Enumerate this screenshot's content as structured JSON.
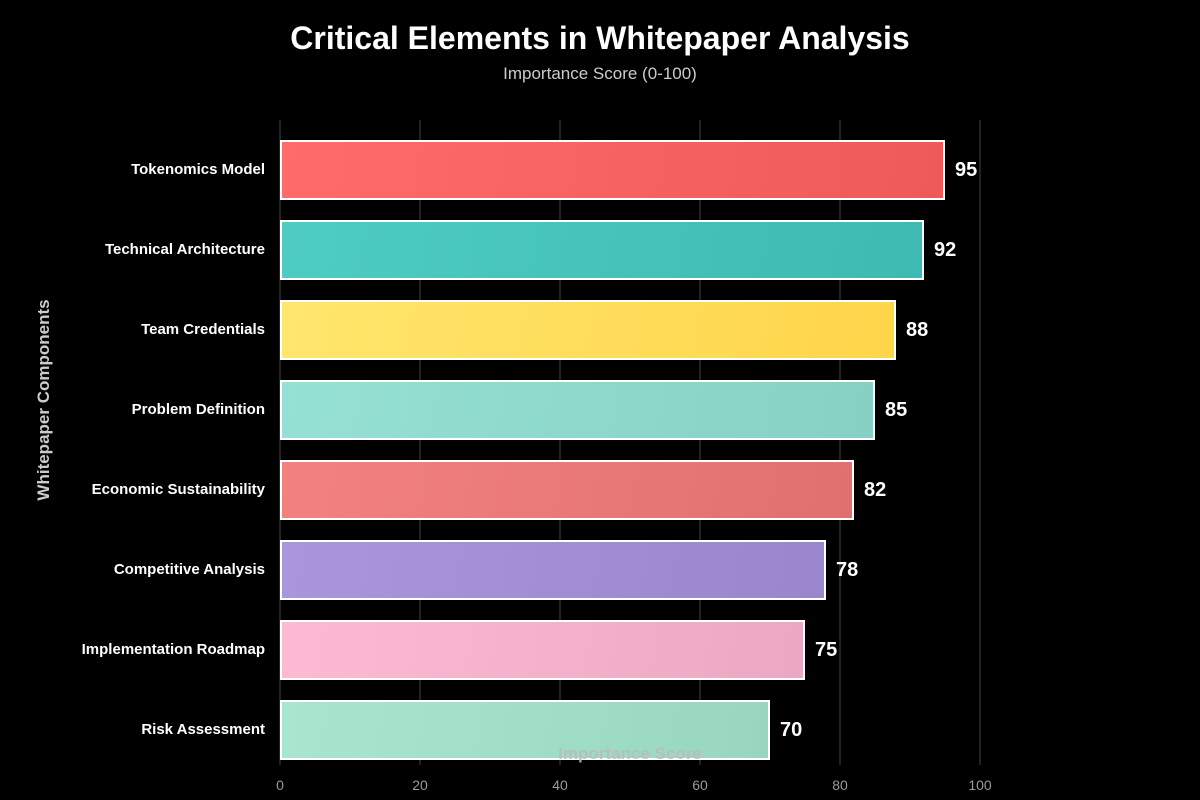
{
  "chart_data": {
    "type": "bar",
    "orientation": "horizontal",
    "title": "Critical Elements in Whitepaper Analysis",
    "subtitle": "Importance Score (0-100)",
    "xlabel": "Importance Score",
    "ylabel": "Whitepaper Components",
    "xlim": [
      0,
      100
    ],
    "xticks": [
      "0",
      "20",
      "40",
      "60",
      "80",
      "100"
    ],
    "grid": true,
    "legend": "none",
    "categories": [
      "Tokenomics Model",
      "Technical Architecture",
      "Team Credentials",
      "Problem Definition",
      "Economic Sustainability",
      "Competitive Analysis",
      "Implementation Roadmap",
      "Risk Assessment"
    ],
    "values": [
      95,
      92,
      88,
      85,
      82,
      78,
      75,
      70
    ],
    "colors": [
      [
        "#ff6b6b",
        "#ee5a5a"
      ],
      [
        "#4ecdc4",
        "#3dbab2"
      ],
      [
        "#ffe66d",
        "#ffd54a"
      ],
      [
        "#95e1d3",
        "#86d0c4"
      ],
      [
        "#f38181",
        "#e07070"
      ],
      [
        "#aa96da",
        "#9a86cc"
      ],
      [
        "#fcbad3",
        "#eaa8c2"
      ],
      [
        "#a8e6cf",
        "#98d6c0"
      ]
    ]
  }
}
